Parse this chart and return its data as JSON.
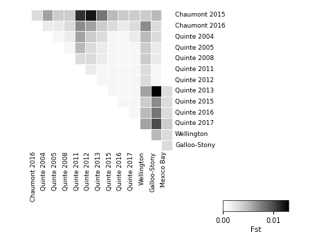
{
  "labels_rows": [
    "Chaumont 2015",
    "Chaumont 2016",
    "Quinte 2004",
    "Quinte 2005",
    "Quinte 2008",
    "Quinte 2011",
    "Quinte 2012",
    "Quinte 2013",
    "Quinte 2015",
    "Quinte 2016",
    "Quinte 2017",
    "Wellington",
    "Galloo-Stony"
  ],
  "labels_cols": [
    "Chaumont 2016",
    "Quinte 2004",
    "Quinte 2005",
    "Quinte 2008",
    "Quinte 2011",
    "Quinte 2012",
    "Quinte 2013",
    "Quinte 2015",
    "Quinte 2016",
    "Quinte 2017",
    "Wellington",
    "Galloo-Stony",
    "Mexico Bay"
  ],
  "fst_max": 0.013,
  "colorbar_ticks": [
    0,
    0.01
  ],
  "colorbar_label": "Fst",
  "matrix": [
    [
      0.003,
      0.006,
      0.004,
      0.004,
      0.011,
      0.012,
      0.008,
      0.005,
      0.004,
      0.004,
      0.004,
      0.005,
      null
    ],
    [
      null,
      0.002,
      0.002,
      0.003,
      0.007,
      0.006,
      0.004,
      0.003,
      0.002,
      0.003,
      0.007,
      0.003,
      null
    ],
    [
      null,
      null,
      0.001,
      0.002,
      0.006,
      0.004,
      0.003,
      0.001,
      0.001,
      0.002,
      0.005,
      0.003,
      null
    ],
    [
      null,
      null,
      null,
      0.001,
      0.005,
      0.003,
      0.002,
      0.001,
      0.001,
      0.001,
      0.004,
      0.002,
      null
    ],
    [
      null,
      null,
      null,
      null,
      0.003,
      0.003,
      0.002,
      0.001,
      0.001,
      0.001,
      0.004,
      0.002,
      null
    ],
    [
      null,
      null,
      null,
      null,
      null,
      0.002,
      0.001,
      0.001,
      0.001,
      0.001,
      0.003,
      0.001,
      null
    ],
    [
      null,
      null,
      null,
      null,
      null,
      null,
      0.001,
      0.001,
      0.001,
      0.001,
      0.003,
      0.001,
      null
    ],
    [
      null,
      null,
      null,
      null,
      null,
      null,
      null,
      0.001,
      0.001,
      0.001,
      0.006,
      0.013,
      0.003
    ],
    [
      null,
      null,
      null,
      null,
      null,
      null,
      null,
      null,
      0.001,
      0.001,
      0.004,
      0.007,
      0.003
    ],
    [
      null,
      null,
      null,
      null,
      null,
      null,
      null,
      null,
      null,
      0.001,
      0.005,
      0.008,
      0.003
    ],
    [
      null,
      null,
      null,
      null,
      null,
      null,
      null,
      null,
      null,
      null,
      0.006,
      0.01,
      0.004
    ],
    [
      null,
      null,
      null,
      null,
      null,
      null,
      null,
      null,
      null,
      null,
      null,
      0.005,
      0.003
    ],
    [
      null,
      null,
      null,
      null,
      null,
      null,
      null,
      null,
      null,
      null,
      null,
      null,
      0.003
    ]
  ],
  "background_color": "#ffffff",
  "text_color": "#000000",
  "label_fontsize": 6.5,
  "colorbar_fontsize": 7
}
